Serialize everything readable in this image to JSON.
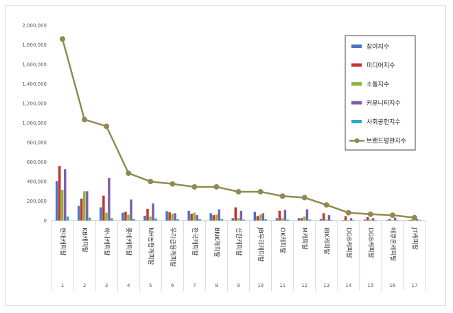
{
  "chart_data": {
    "type": "bar",
    "y_ticks": [
      "0",
      "200,000",
      "400,000",
      "600,000",
      "800,000",
      "1,000,000",
      "1,200,000",
      "1,400,000",
      "1,600,000",
      "1,800,000",
      "2,000,000"
    ],
    "ylim": [
      0,
      2000000
    ],
    "categories": [
      "현대캐피탈",
      "KB캐피탈",
      "하나캐피탈",
      "롯데캐피탈",
      "NH농협캐피탈",
      "우리금융캐피탈",
      "한국캐피탈",
      "BNK캐피탈",
      "신한캐피탈",
      "JB우리캐피탈",
      "OK캐피탈",
      "M캐피탈",
      "IBK캐피탈",
      "DGB캐피탈",
      "DGB캐피탈",
      "애큐온캐피탈",
      "JT캐피탈"
    ],
    "indices": [
      "1",
      "2",
      "3",
      "4",
      "5",
      "6",
      "7",
      "8",
      "9",
      "10",
      "11",
      "12",
      "13",
      "14",
      "15",
      "16",
      "17"
    ],
    "series": [
      {
        "name": "참여지수",
        "color": "#4472c4",
        "values": [
          405000,
          150000,
          135000,
          80000,
          50000,
          95000,
          100000,
          75000,
          25000,
          90000,
          25000,
          25000,
          15000,
          5000,
          10000,
          5000,
          5000
        ]
      },
      {
        "name": "미디어지수",
        "color": "#c0392b",
        "values": [
          560000,
          225000,
          255000,
          90000,
          120000,
          85000,
          70000,
          55000,
          135000,
          45000,
          100000,
          25000,
          75000,
          45000,
          35000,
          15000,
          10000
        ]
      },
      {
        "name": "소통지수",
        "color": "#8db33a",
        "values": [
          315000,
          300000,
          80000,
          60000,
          40000,
          70000,
          80000,
          60000,
          25000,
          60000,
          25000,
          40000,
          10000,
          5000,
          10000,
          5000,
          5000
        ]
      },
      {
        "name": "커뮤니티지수",
        "color": "#7b5ea7",
        "values": [
          525000,
          300000,
          435000,
          215000,
          175000,
          75000,
          55000,
          115000,
          100000,
          75000,
          110000,
          115000,
          55000,
          25000,
          25000,
          30000,
          15000
        ]
      },
      {
        "name": "사회공헌지수",
        "color": "#2ea8c8",
        "values": [
          40000,
          30000,
          25000,
          15000,
          20000,
          15000,
          15000,
          15000,
          10000,
          15000,
          10000,
          10000,
          5000,
          5000,
          5000,
          5000,
          5000
        ]
      }
    ],
    "line": {
      "name": "브랜드평판지수",
      "color": "#8f8a52",
      "values": [
        1860000,
        1035000,
        965000,
        485000,
        400000,
        375000,
        345000,
        345000,
        295000,
        295000,
        250000,
        235000,
        160000,
        80000,
        65000,
        55000,
        30000
      ]
    },
    "legend_position": "top-right",
    "grid": false
  }
}
